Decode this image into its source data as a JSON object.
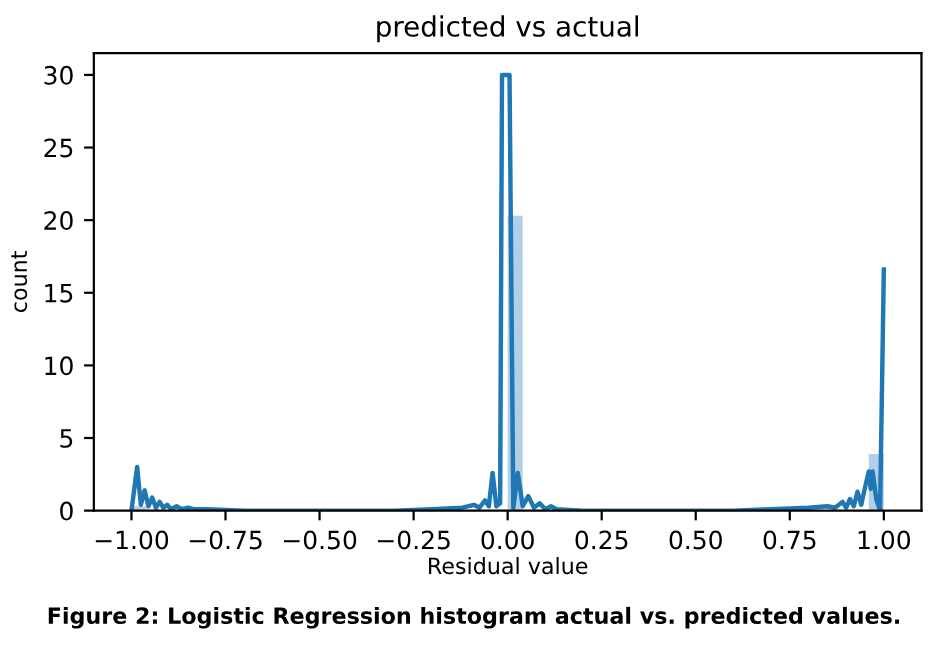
{
  "chart_data": {
    "type": "histogram",
    "title": "predicted vs actual",
    "xlabel": "Residual value",
    "ylabel": "count",
    "xlim": [
      -1.1,
      1.1
    ],
    "xticks": [
      {
        "value": -1,
        "label": "−1.00"
      },
      {
        "value": -0.75,
        "label": "−0.75"
      },
      {
        "value": -0.5,
        "label": "−0.50"
      },
      {
        "value": -0.25,
        "label": "−0.25"
      },
      {
        "value": 0,
        "label": "0.00"
      },
      {
        "value": 0.25,
        "label": "0.25"
      },
      {
        "value": 0.5,
        "label": "0.50"
      },
      {
        "value": 0.75,
        "label": "0.75"
      },
      {
        "value": 1,
        "label": "1.00"
      }
    ],
    "ylim": [
      0,
      31.5
    ],
    "yticks": [
      0,
      5,
      10,
      15,
      20,
      25,
      30
    ],
    "grid": false,
    "legend": false,
    "annotations": [
      "Figure 2: Logistic Regression histogram actual vs. predicted values."
    ],
    "color": "#a9cbe6",
    "bins": [
      -1.0,
      -0.96,
      -0.92,
      -0.88,
      -0.84,
      -0.8,
      -0.76,
      -0.72,
      -0.68,
      -0.64,
      -0.6,
      -0.56,
      -0.52,
      -0.48,
      -0.44,
      -0.4,
      -0.36,
      -0.32,
      -0.28,
      -0.24,
      -0.2,
      -0.16,
      -0.12,
      -0.08,
      -0.04,
      0.0,
      0.04,
      0.08,
      0.12,
      0.16,
      0.2,
      0.24,
      0.28,
      0.32,
      0.36,
      0.4,
      0.44,
      0.48,
      0.52,
      0.56,
      0.6,
      0.64,
      0.68,
      0.72,
      0.76,
      0.8,
      0.84,
      0.88,
      0.92,
      0.96,
      1.0
    ],
    "values": [
      0.3,
      0,
      0,
      0,
      0,
      0,
      0,
      0,
      0,
      0,
      0,
      0,
      0,
      0,
      0,
      0,
      0,
      0,
      0,
      0,
      0,
      0,
      0,
      0,
      0,
      20.3,
      0,
      0,
      0,
      0,
      0,
      0,
      0,
      0,
      0,
      0,
      0,
      0,
      0,
      0,
      0,
      0,
      0,
      0,
      0,
      0,
      0,
      0,
      0,
      3.9
    ],
    "series": [
      {
        "type": "line",
        "color": "#1f77b4",
        "x": [
          -1.0,
          -0.985,
          -0.975,
          -0.965,
          -0.955,
          -0.945,
          -0.935,
          -0.925,
          -0.915,
          -0.905,
          -0.895,
          -0.88,
          -0.865,
          -0.85,
          -0.835,
          -0.8,
          -0.7,
          -0.6,
          -0.5,
          -0.4,
          -0.3,
          -0.2,
          -0.12,
          -0.09,
          -0.075,
          -0.06,
          -0.05,
          -0.04,
          -0.03,
          -0.02,
          -0.015,
          0.005,
          0.015,
          0.027,
          0.04,
          0.055,
          0.07,
          0.085,
          0.1,
          0.115,
          0.13,
          0.2,
          0.3,
          0.4,
          0.5,
          0.6,
          0.7,
          0.8,
          0.85,
          0.87,
          0.89,
          0.9,
          0.91,
          0.92,
          0.93,
          0.94,
          0.95,
          0.96,
          0.965,
          0.97,
          0.98,
          0.99,
          1.0
        ],
        "values": [
          0,
          3.0,
          0.4,
          1.4,
          0.3,
          0.9,
          0.2,
          0.6,
          0.2,
          0.4,
          0.1,
          0.3,
          0.1,
          0.2,
          0.1,
          0.1,
          0,
          0,
          0,
          0,
          0,
          0.1,
          0.2,
          0.4,
          0.2,
          0.7,
          0.3,
          2.6,
          0.3,
          0.5,
          30,
          30,
          0.2,
          2.6,
          0.3,
          1.0,
          0.2,
          0.5,
          0.1,
          0.3,
          0.1,
          0,
          0,
          0,
          0,
          0,
          0.1,
          0.2,
          0.3,
          0.2,
          0.6,
          0.2,
          0.8,
          0.3,
          1.3,
          0.4,
          1.6,
          2.7,
          1.5,
          2.7,
          0.8,
          0,
          16.6
        ]
      }
    ]
  }
}
